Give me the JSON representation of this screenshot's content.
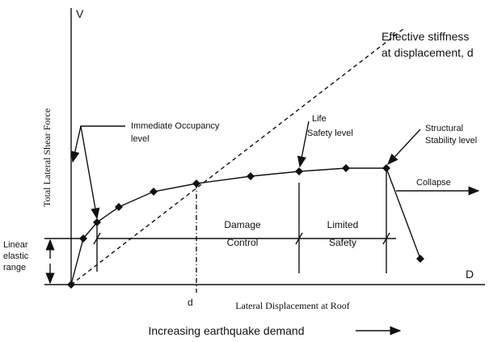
{
  "y_axis_symbol": "V",
  "x_axis_symbol": "D",
  "y_axis_label": "Total Lateral Shear Force",
  "x_axis_label": "Lateral Displacement at Roof",
  "footer": "Increasing earthquake demand",
  "stiffness_label": [
    "Effective stiffness",
    "at displacement, d"
  ],
  "immediate_occupancy": [
    "Immediate Occupancy",
    "level"
  ],
  "life_safety": [
    "Life",
    "Safety level"
  ],
  "structural_stability": [
    "Structural",
    "Stability level"
  ],
  "collapse": "Collapse",
  "damage_control": [
    "Damage",
    "Control"
  ],
  "limited_safety": [
    "Limited",
    "Safety"
  ],
  "linear_elastic": [
    "Linear",
    "elastic",
    "range"
  ],
  "d_marker": "d"
}
